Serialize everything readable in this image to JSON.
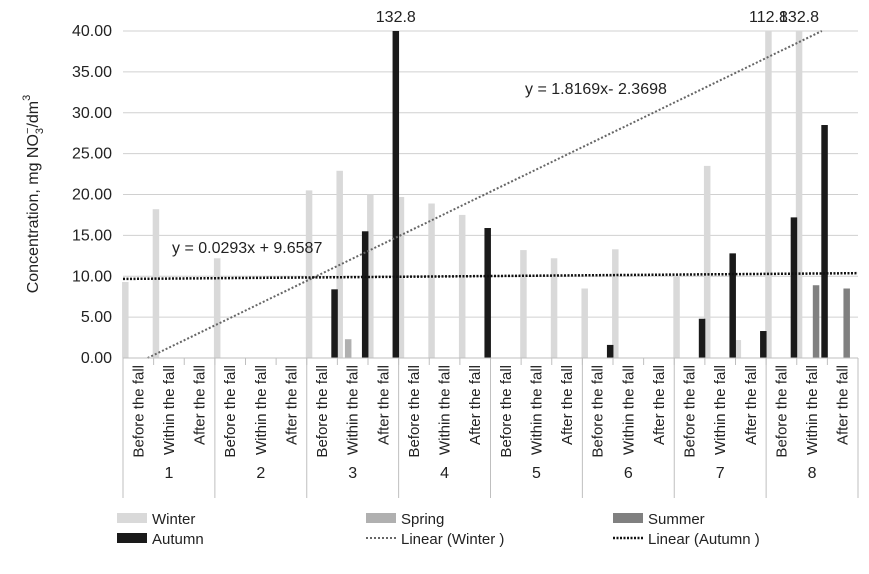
{
  "chart_data": {
    "type": "bar",
    "ylabel_main": "Concentration, mg NO",
    "ylabel_sub": "3",
    "ylabel_sup": "−",
    "ylabel_tail": "/dm",
    "ylabel_sup2": "3",
    "ylim": [
      0,
      40
    ],
    "yticks": [
      "0.00",
      "5.00",
      "10.00",
      "15.00",
      "20.00",
      "25.00",
      "30.00",
      "35.00",
      "40.00"
    ],
    "groups": [
      "1",
      "2",
      "3",
      "4",
      "5",
      "6",
      "7",
      "8"
    ],
    "subcategories": [
      "Before the fall",
      "Within the fall",
      "After the fall"
    ],
    "series": [
      {
        "name": "Winter",
        "color": "#d9d9d9",
        "values": [
          [
            9.3,
            18.2,
            null
          ],
          [
            12.2,
            null,
            null
          ],
          [
            20.5,
            22.9,
            20.0
          ],
          [
            19.7,
            18.9,
            17.5
          ],
          [
            null,
            13.2,
            12.2
          ],
          [
            8.5,
            13.3,
            null
          ],
          [
            10.0,
            23.5,
            2.2
          ],
          [
            40.0,
            40.0,
            null
          ]
        ]
      },
      {
        "name": "Spring",
        "color": "#b0b0b0",
        "values": [
          [
            null,
            null,
            null
          ],
          [
            null,
            null,
            null
          ],
          [
            null,
            2.3,
            null
          ],
          [
            null,
            null,
            null
          ],
          [
            null,
            null,
            null
          ],
          [
            null,
            null,
            null
          ],
          [
            null,
            null,
            null
          ],
          [
            null,
            null,
            null
          ]
        ]
      },
      {
        "name": "Summer",
        "color": "#808080",
        "values": [
          [
            null,
            null,
            null
          ],
          [
            null,
            null,
            null
          ],
          [
            null,
            null,
            null
          ],
          [
            null,
            null,
            null
          ],
          [
            null,
            null,
            null
          ],
          [
            null,
            null,
            null
          ],
          [
            null,
            null,
            null
          ],
          [
            null,
            8.9,
            8.5
          ]
        ]
      },
      {
        "name": "Autumn",
        "color": "#1a1a1a",
        "values": [
          [
            null,
            null,
            null
          ],
          [
            null,
            null,
            null
          ],
          [
            8.4,
            15.5,
            40.0
          ],
          [
            null,
            null,
            15.9
          ],
          [
            null,
            null,
            null
          ],
          [
            1.6,
            null,
            null
          ],
          [
            4.8,
            12.8,
            3.3
          ],
          [
            17.2,
            28.5,
            null
          ]
        ]
      }
    ],
    "trendlines": [
      {
        "name": "Linear (Winter )",
        "slope": 1.8169,
        "intercept": -2.3698,
        "equation": "y = 1.8169x- 2.3698"
      },
      {
        "name": "Linear (Autumn )",
        "slope": 0.0293,
        "intercept": 9.6587,
        "equation": "y = 0.0293x + 9.6587"
      }
    ],
    "annotations": [
      {
        "text": "132.8",
        "group": 2,
        "sub": 2,
        "series": "Autumn"
      },
      {
        "text": "112.8",
        "group": 7,
        "sub": 0,
        "series": "Winter"
      },
      {
        "text": "132.8",
        "group": 7,
        "sub": 1,
        "series": "Winter"
      }
    ],
    "legend": [
      {
        "label": "Winter",
        "kind": "bar",
        "color": "#d9d9d9"
      },
      {
        "label": "Spring",
        "kind": "bar",
        "color": "#b0b0b0"
      },
      {
        "label": "Summer",
        "kind": "bar",
        "color": "#808080"
      },
      {
        "label": "Autumn",
        "kind": "bar",
        "color": "#1a1a1a"
      },
      {
        "label": "Linear (Winter )",
        "kind": "line-light",
        "color": "#666666"
      },
      {
        "label": "Linear (Autumn )",
        "kind": "line-dark",
        "color": "#111111"
      }
    ],
    "grid": true,
    "legend_position": "bottom"
  }
}
